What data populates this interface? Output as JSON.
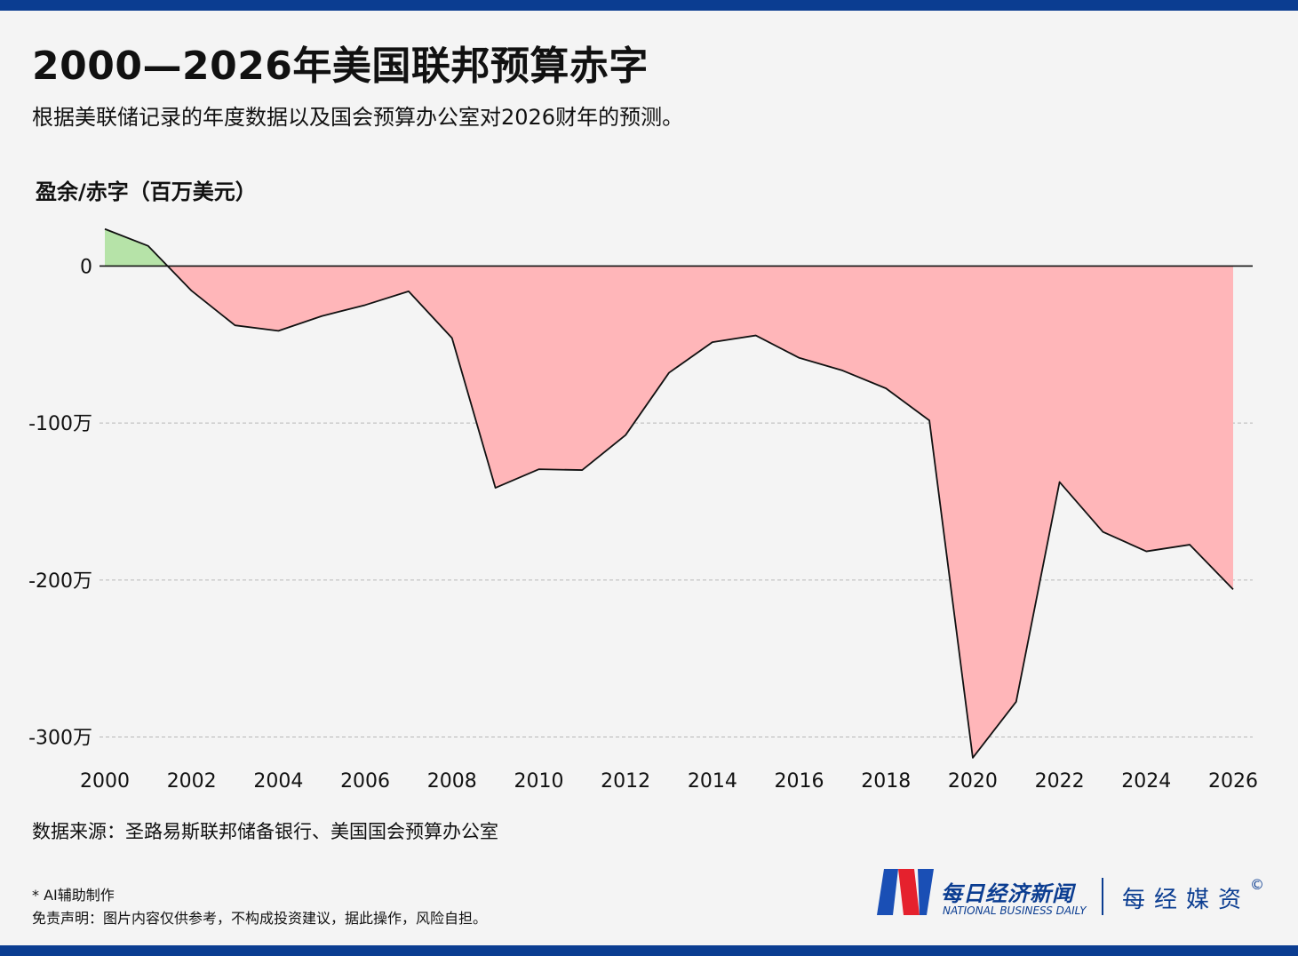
{
  "title": "2000—2026年美国联邦预算赤字",
  "subtitle": "根据美联储记录的年度数据以及国会预算办公室对2026财年的预测。",
  "source": "数据来源：圣路易斯联邦储备银行、美国国会预算办公室",
  "note": "* AI辅助制作",
  "disclaimer": "免责声明：图片内容仅供参考，不构成投资建议，据此操作，风险自担。",
  "brand": {
    "logo_cn": "每日经济新闻",
    "logo_en": "NATIONAL BUSINESS DAILY",
    "partner": "每经媒资",
    "copyright": "©"
  },
  "colors": {
    "brand": "#0b3d91",
    "logo_red": "#e5212d",
    "surplus_fill": "#b6e3a8",
    "deficit_fill": "#ffb6b9",
    "line": "#111111"
  },
  "chart_data": {
    "type": "area",
    "title": "2000—2026年美国联邦预算赤字",
    "ylabel": "盈余/赤字（百万美元）",
    "xlabel": "",
    "x": [
      2000,
      2001,
      2002,
      2003,
      2004,
      2005,
      2006,
      2007,
      2008,
      2009,
      2010,
      2011,
      2012,
      2013,
      2014,
      2015,
      2016,
      2017,
      2018,
      2019,
      2020,
      2021,
      2022,
      2023,
      2024,
      2025,
      2026
    ],
    "values": [
      236241,
      128236,
      -157758,
      -377585,
      -412727,
      -318346,
      -248181,
      -160701,
      -458553,
      -1412688,
      -1294373,
      -1299599,
      -1076573,
      -679775,
      -484602,
      -441960,
      -584651,
      -665446,
      -779137,
      -983600,
      -3132460,
      -2775300,
      -1375900,
      -1693700,
      -1817400,
      -1775000,
      -2060000
    ],
    "xlim": [
      2000,
      2026
    ],
    "ylim": [
      -3150000,
      280000
    ],
    "xticks": [
      2000,
      2002,
      2004,
      2006,
      2008,
      2010,
      2012,
      2014,
      2016,
      2018,
      2020,
      2022,
      2024,
      2026
    ],
    "yticks": [
      {
        "value": 0,
        "label": "0"
      },
      {
        "value": -1000000,
        "label": "-100万"
      },
      {
        "value": -2000000,
        "label": "-200万"
      },
      {
        "value": -3000000,
        "label": "-300万"
      }
    ],
    "grid": "horizontal-dashed",
    "legend": "none"
  }
}
